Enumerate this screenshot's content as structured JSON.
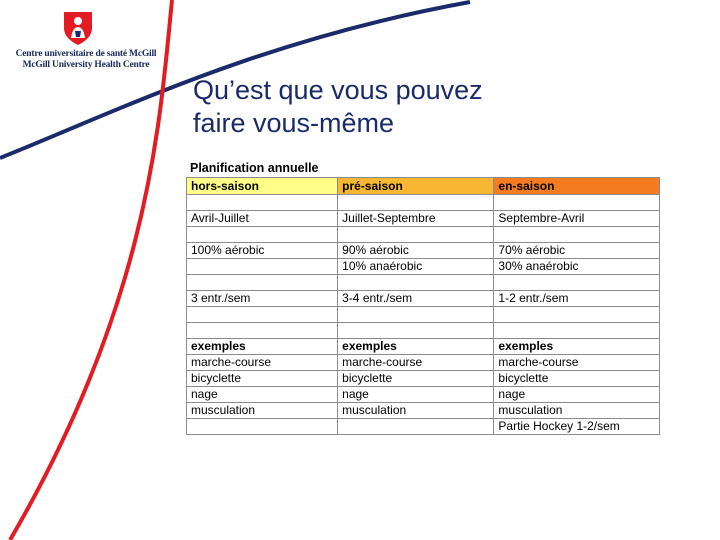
{
  "header": {
    "org_line1": "Centre universitaire de santé McGill",
    "org_line2": "McGill University Health Centre"
  },
  "title": {
    "line1": "Qu’est que vous pouvez",
    "line2": "faire vous-même"
  },
  "colors": {
    "accent_red": "#e31b23",
    "accent_navy": "#1b2a6b",
    "header_offseason": "#ffff88",
    "header_preseason": "#f7b733",
    "header_inseason": "#f47b20"
  },
  "table": {
    "heading": "Planification annuelle",
    "columns": [
      "hors-saison",
      "pré-saison",
      "en-saison"
    ],
    "period": [
      "Avril-Juillet",
      "Juillet-Septembre",
      "Septembre-Avril"
    ],
    "aerobic": [
      "100% aérobic",
      "90% aérobic",
      "70% aérobic"
    ],
    "anaerobic": [
      "",
      "10% anaérobic",
      "30% anaérobic"
    ],
    "frequency": [
      "3 entr./sem",
      "3-4 entr./sem",
      "1-2 entr./sem"
    ],
    "examples_label": [
      "exemples",
      "exemples",
      "exemples"
    ],
    "ex_row1": [
      "marche-course",
      "marche-course",
      "marche-course"
    ],
    "ex_row2": [
      "bicyclette",
      "bicyclette",
      "bicyclette"
    ],
    "ex_row3": [
      "nage",
      "nage",
      "nage"
    ],
    "ex_row4": [
      "musculation",
      "musculation",
      "musculation"
    ],
    "ex_row5": [
      "",
      "",
      "Partie Hockey 1-2/sem"
    ]
  }
}
